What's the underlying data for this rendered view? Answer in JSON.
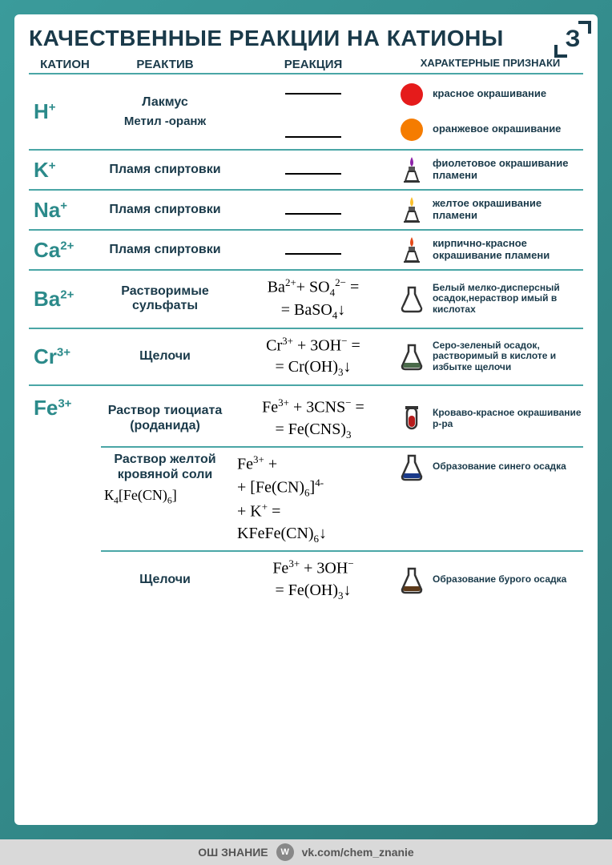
{
  "title": "КАЧЕСТВЕННЫЕ РЕАКЦИИ НА КАТИОНЫ",
  "corner": "З",
  "headers": {
    "c1": "КАТИОН",
    "c2": "РЕАКТИВ",
    "c3": "РЕАКЦИЯ",
    "c4": "ХАРАКТЕРНЫЕ ПРИЗНАКИ"
  },
  "rows": {
    "h": {
      "cation_html": "H<sup>+</sup>",
      "reagents": [
        "Лакмус",
        "Метил -оранж"
      ],
      "signs": [
        {
          "icon": "circle",
          "color": "#e51b1b",
          "text": "красное окрашивание"
        },
        {
          "icon": "circle",
          "color": "#f57c00",
          "text": "оранжевое окрашивание"
        }
      ]
    },
    "k": {
      "cation_html": "K<sup>+</sup>",
      "reagent": "Пламя спиртовки",
      "sign": {
        "icon": "burner",
        "color": "#8e24aa",
        "text": "фиолетовое окрашивание пламени"
      }
    },
    "na": {
      "cation_html": "Na<sup>+</sup>",
      "reagent": "Пламя спиртовки",
      "sign": {
        "icon": "burner",
        "color": "#fbc02d",
        "text": "желтое окрашивание пламени"
      }
    },
    "ca": {
      "cation_html": "Ca<sup>2+</sup>",
      "reagent": "Пламя спиртовки",
      "sign": {
        "icon": "burner",
        "color": "#e64a19",
        "text": "кирпично-красное окрашивание пламени"
      }
    },
    "ba": {
      "cation_html": "Ba<sup>2+</sup>",
      "reagent": "Растворимые сульфаты",
      "reaction_html": "Ba<sup>2+</sup>+ SO<sub>4</sub><sup>2−</sup> =<br>= BaSO<sub>4</sub>↓",
      "sign": {
        "icon": "flask",
        "color": "#ffffff",
        "outline": "#333",
        "text": "Белый мелко-дисперсный осадок,нераствор имый в кислотах"
      }
    },
    "cr": {
      "cation_html": "Cr<sup>3+</sup>",
      "reagent": "Щелочи",
      "reaction_html": "Cr<sup>3+</sup> + 3OH<sup>−</sup> =<br>= Cr(OH)<sub>3</sub>↓",
      "sign": {
        "icon": "flask",
        "color": "#4a6b4a",
        "outline": "#333",
        "text": "Серо-зеленый осадок, растворимый в кислоте и избытке щелочи"
      }
    },
    "fe": {
      "cation_html": "Fe<sup>3+</sup>",
      "sub": [
        {
          "reagent": "Раствор тиоциата (роданида)",
          "reaction_html": "Fe<sup>3+</sup> + 3CNS<sup>−</sup> =<br>= Fe(CNS)<sub>3</sub>",
          "sign": {
            "icon": "tube",
            "color": "#b71c1c",
            "text": "Кроваво-красное окрашивание р-ра"
          }
        },
        {
          "reagent": "Раствор желтой кровяной соли",
          "formula_html": "К<sub>4</sub>[Fe(CN)<sub>6</sub>]",
          "reaction_html": "Fe<sup>3+</sup> +<br>+ [Fe(CN)<sub>6</sub>]<sup>4-</sup><br>+ K<sup>+</sup> =<br>KFeFe(CN)<sub>6</sub>↓",
          "sign": {
            "icon": "flask",
            "color": "#1a3a8a",
            "outline": "#333",
            "text": "Образование синего осадка"
          }
        },
        {
          "reagent": "Щелочи",
          "reaction_html": "Fe<sup>3+</sup> + 3OH<sup>−</sup><br>= Fe(OH)<sub>3</sub>↓",
          "sign": {
            "icon": "flask",
            "color": "#5d3a1a",
            "outline": "#333",
            "text": "Образование бурого осадка"
          }
        }
      ]
    }
  },
  "footer": {
    "left": "ОШ ЗНАНИЕ",
    "vk": "W",
    "link": "vk.com/chem_znanie"
  },
  "colors": {
    "bg_grad_from": "#3a9b9b",
    "bg_grad_to": "#2d7a7a",
    "card_bg": "#ffffff",
    "divider": "#4aa6a6",
    "heading": "#1a3a4a",
    "cation": "#2b8a8a",
    "footer_bg": "#d9d9d9"
  }
}
